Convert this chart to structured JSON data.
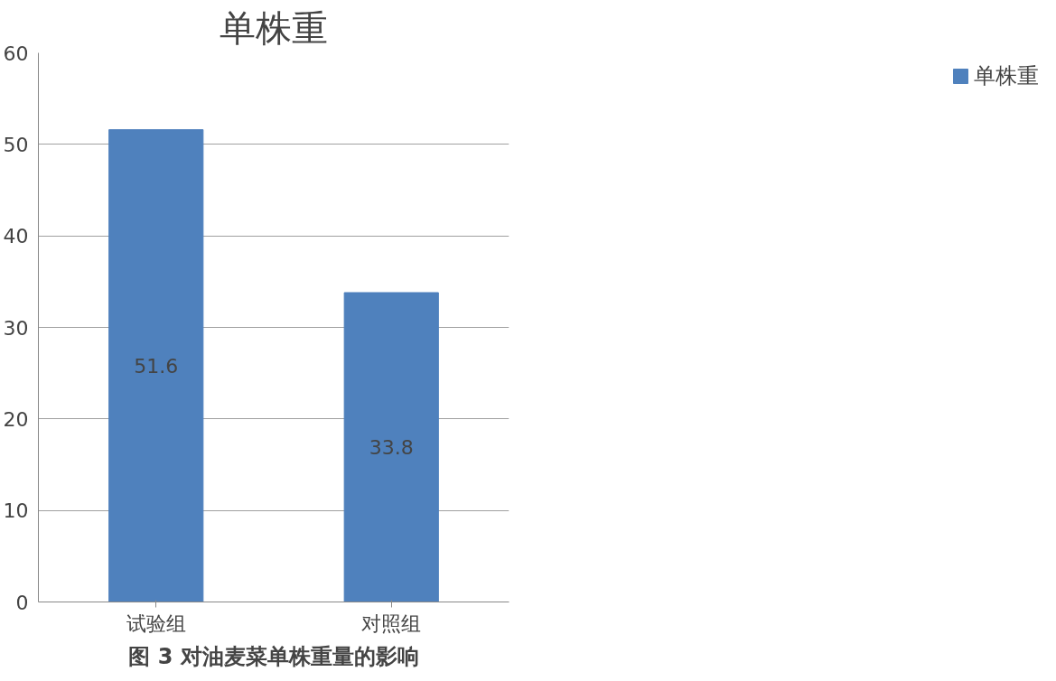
{
  "chart_data": {
    "type": "bar",
    "title": "单株重",
    "categories": [
      "试验组",
      "对照组"
    ],
    "series": [
      {
        "name": "单株重",
        "color": "#4f81bd",
        "values": [
          51.6,
          33.8
        ]
      }
    ],
    "ylim": [
      0,
      60
    ],
    "yticks": [
      0,
      10,
      20,
      30,
      40,
      50,
      60
    ],
    "grid": "y",
    "legend": "right",
    "data_labels": true,
    "annotations": [
      "图 3 对油麦菜单株重量的影响"
    ]
  }
}
